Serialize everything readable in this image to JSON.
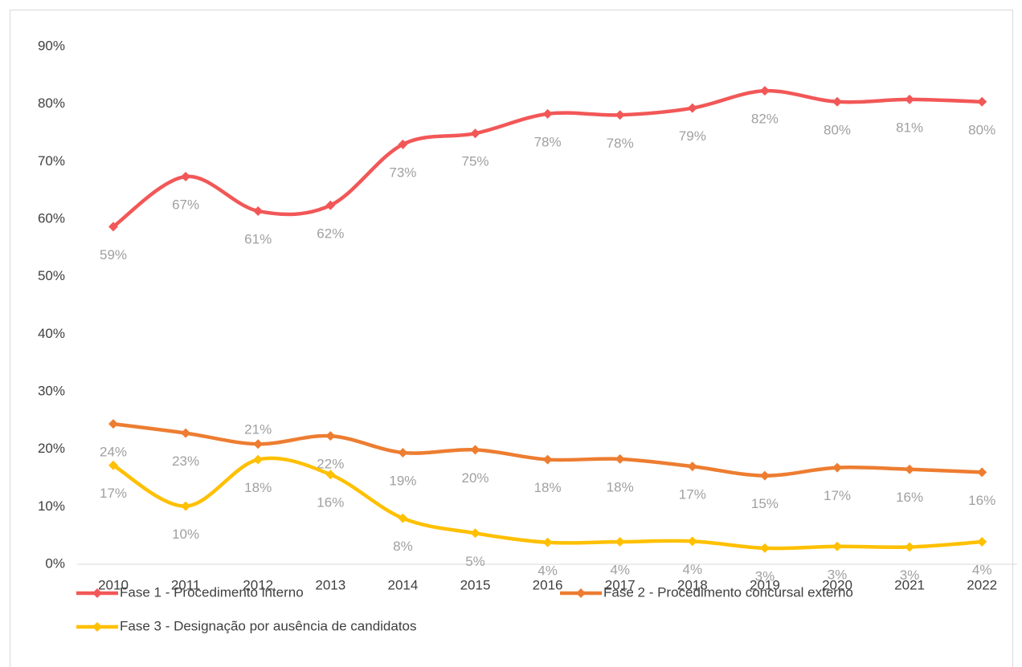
{
  "chart_data": {
    "type": "line",
    "categories": [
      "2010",
      "2011",
      "2012",
      "2013",
      "2014",
      "2015",
      "2016",
      "2017",
      "2018",
      "2019",
      "2020",
      "2021",
      "2022"
    ],
    "series": [
      {
        "name": "Fase 1 - Procedimento interno",
        "color": "#f25757",
        "values": [
          58.7,
          67.4,
          61.4,
          62.4,
          73.0,
          74.9,
          78.3,
          78.1,
          79.3,
          82.3,
          80.4,
          80.8,
          80.4
        ],
        "value_labels": [
          "59%",
          "67%",
          "61%",
          "62%",
          "73%",
          "75%",
          "78%",
          "78%",
          "79%",
          "82%",
          "80%",
          "81%",
          "80%"
        ]
      },
      {
        "name": "Fase 2 - Procedimento concursal externo",
        "color": "#ed7d31",
        "values": [
          24.4,
          22.8,
          20.9,
          22.3,
          19.4,
          19.9,
          18.2,
          18.3,
          17.0,
          15.4,
          16.8,
          16.5,
          16.0
        ],
        "value_labels": [
          "24%",
          "23%",
          "21%",
          "22%",
          "19%",
          "20%",
          "18%",
          "18%",
          "17%",
          "15%",
          "17%",
          "16%",
          "16%"
        ]
      },
      {
        "name": "Fase 3 - Designação por ausência de candidatos",
        "color": "#ffc000",
        "values": [
          17.2,
          10.1,
          18.2,
          15.6,
          8.0,
          5.4,
          3.8,
          3.9,
          4.0,
          2.8,
          3.1,
          3.0,
          3.9
        ],
        "value_labels": [
          "17%",
          "10%",
          "18%",
          "16%",
          "8%",
          "5%",
          "4%",
          "4%",
          "4%",
          "3%",
          "3%",
          "3%",
          "4%"
        ]
      }
    ],
    "ylim": [
      0,
      90
    ],
    "yticks": [
      {
        "value": 0,
        "label": "0%"
      },
      {
        "value": 10,
        "label": "10%"
      },
      {
        "value": 20,
        "label": "20%"
      },
      {
        "value": 30,
        "label": "30%"
      },
      {
        "value": 40,
        "label": "40%"
      },
      {
        "value": 50,
        "label": "50%"
      },
      {
        "value": 60,
        "label": "60%"
      },
      {
        "value": 70,
        "label": "70%"
      },
      {
        "value": 80,
        "label": "80%"
      },
      {
        "value": 90,
        "label": "90%"
      }
    ],
    "grid": false,
    "legend": "bottom"
  }
}
